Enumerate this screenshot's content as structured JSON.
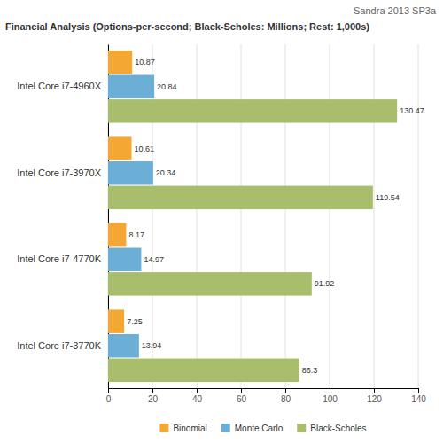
{
  "chart_data": {
    "type": "bar",
    "orientation": "horizontal",
    "title": "Financial Analysis (Options-per-second; Black-Scholes: Millions; Rest: 1,000s)",
    "subtitle": "Sandra 2013 SP3a",
    "categories": [
      "Intel Core i7-4960X",
      "Intel Core i7-3970X",
      "Intel Core i7-4770K",
      "Intel Core i7-3770K"
    ],
    "series": [
      {
        "name": "Binomial",
        "color": "#F5A733",
        "values": [
          10.87,
          10.61,
          8.17,
          7.25
        ]
      },
      {
        "name": "Monte Carlo",
        "color": "#6BAED6",
        "values": [
          20.84,
          20.34,
          14.97,
          13.94
        ]
      },
      {
        "name": "Black-Scholes",
        "color": "#A8BE6C",
        "values": [
          130.47,
          119.54,
          91.92,
          86.3
        ]
      }
    ],
    "xlim": [
      0,
      140
    ],
    "xticks": [
      0,
      20,
      40,
      60,
      80,
      100,
      120,
      140
    ],
    "grid": true,
    "data_labels": true,
    "legend": "bottom"
  }
}
